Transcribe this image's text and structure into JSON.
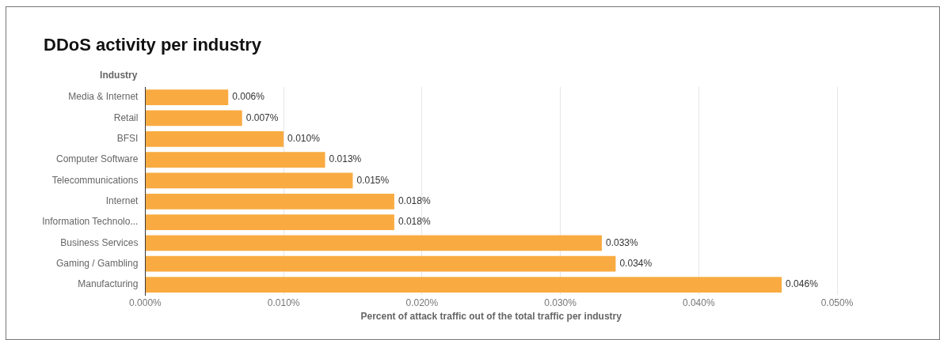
{
  "chart_data": {
    "type": "bar",
    "orientation": "horizontal",
    "title": "DDoS activity per industry",
    "ylabel": "Industry",
    "xlabel": "Percent of attack traffic out of the total traffic per industry",
    "categories": [
      "Media & Internet",
      "Retail",
      "BFSI",
      "Computer Software",
      "Telecommunications",
      "Internet",
      "Information Technolo...",
      "Business Services",
      "Gaming / Gambling",
      "Manufacturing"
    ],
    "values": [
      0.006,
      0.007,
      0.01,
      0.013,
      0.015,
      0.018,
      0.018,
      0.033,
      0.034,
      0.046
    ],
    "value_labels": [
      "0.006%",
      "0.007%",
      "0.010%",
      "0.013%",
      "0.015%",
      "0.018%",
      "0.018%",
      "0.033%",
      "0.034%",
      "0.046%"
    ],
    "color": "#f9ab41",
    "xlim": [
      0,
      0.05
    ],
    "xticks": [
      {
        "value": 0,
        "label": "0.000%"
      },
      {
        "value": 0.01,
        "label": "0.010%"
      },
      {
        "value": 0.02,
        "label": "0.020%"
      },
      {
        "value": 0.03,
        "label": "0.030%"
      },
      {
        "value": 0.04,
        "label": "0.040%"
      },
      {
        "value": 0.05,
        "label": "0.050%"
      }
    ],
    "grid": "x",
    "legend": false
  }
}
